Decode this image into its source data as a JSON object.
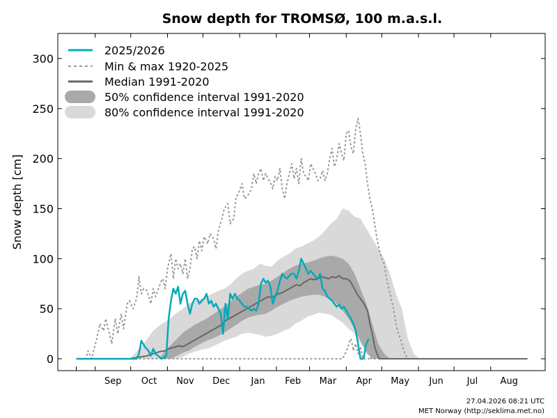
{
  "chart_data": {
    "type": "area",
    "title": "Snow depth for TROMSØ, 100 m.a.s.l.",
    "ylabel": "Snow depth [cm]",
    "xlabel": "",
    "ylim": [
      -15,
      320
    ],
    "yticks": [
      0,
      50,
      100,
      150,
      200,
      250,
      300
    ],
    "grid": false,
    "legend_position": "top-left",
    "x_unit_note": "x values are day-of-season counted from 1 August",
    "months": [
      {
        "label": "Sep",
        "start": 31,
        "mid": 46
      },
      {
        "label": "Oct",
        "start": 61,
        "mid": 76.5
      },
      {
        "label": "Nov",
        "start": 92,
        "mid": 107
      },
      {
        "label": "Dec",
        "start": 122,
        "mid": 137.5
      },
      {
        "label": "Jan",
        "start": 153,
        "mid": 168.5
      },
      {
        "label": "Feb",
        "start": 184,
        "mid": 198
      },
      {
        "label": "Mar",
        "start": 212,
        "mid": 227.5
      },
      {
        "label": "Apr",
        "start": 243,
        "mid": 258
      },
      {
        "label": "May",
        "start": 273,
        "mid": 288.5
      },
      {
        "label": "Jun",
        "start": 304,
        "mid": 319
      },
      {
        "label": "Jul",
        "start": 334,
        "mid": 349.5
      },
      {
        "label": "Aug",
        "start": 365,
        "mid": 380.5
      }
    ],
    "x_range": [
      15,
      396
    ],
    "series": [
      {
        "name": "80% confidence interval 1991-2020",
        "kind": "band",
        "color": "#d9d9d9",
        "x": [
          15,
          50,
          55,
          60,
          65,
          70,
          75,
          80,
          85,
          90,
          95,
          100,
          105,
          110,
          115,
          120,
          125,
          130,
          135,
          140,
          145,
          150,
          155,
          160,
          165,
          170,
          175,
          180,
          185,
          190,
          195,
          200,
          205,
          210,
          215,
          220,
          225,
          230,
          235,
          240,
          245,
          250,
          255,
          260,
          265,
          270,
          275,
          280,
          285,
          290,
          295,
          300,
          305,
          396
        ],
        "upper": [
          0,
          0,
          0,
          0,
          6,
          12,
          20,
          28,
          33,
          37,
          41,
          46,
          50,
          55,
          58,
          60,
          62,
          65,
          68,
          70,
          74,
          80,
          85,
          88,
          90,
          95,
          93,
          92,
          98,
          102,
          105,
          110,
          112,
          115,
          118,
          122,
          128,
          135,
          140,
          150,
          148,
          142,
          140,
          130,
          120,
          110,
          100,
          85,
          65,
          50,
          20,
          5,
          0,
          0
        ],
        "lower": [
          0,
          0,
          0,
          0,
          0,
          0,
          0,
          0,
          0,
          0,
          0,
          0,
          2,
          5,
          7,
          9,
          10,
          12,
          15,
          18,
          20,
          22,
          25,
          26,
          25,
          24,
          22,
          23,
          25,
          28,
          30,
          35,
          38,
          42,
          44,
          46,
          45,
          44,
          40,
          36,
          30,
          25,
          15,
          8,
          3,
          0,
          0,
          0,
          0,
          0,
          0,
          0,
          0,
          0
        ]
      },
      {
        "name": "50% confidence interval 1991-2020",
        "kind": "band",
        "color": "#a9a9a9",
        "x": [
          15,
          85,
          90,
          95,
          100,
          105,
          110,
          115,
          120,
          125,
          130,
          135,
          140,
          145,
          150,
          155,
          160,
          165,
          170,
          175,
          180,
          185,
          190,
          195,
          200,
          205,
          210,
          215,
          220,
          225,
          230,
          235,
          240,
          245,
          250,
          255,
          260,
          265,
          270,
          275,
          280,
          396
        ],
        "upper": [
          0,
          0,
          8,
          14,
          20,
          26,
          30,
          34,
          37,
          40,
          44,
          48,
          52,
          57,
          62,
          66,
          70,
          72,
          74,
          75,
          78,
          82,
          86,
          90,
          93,
          95,
          96,
          98,
          100,
          102,
          103,
          102,
          100,
          95,
          85,
          70,
          55,
          35,
          15,
          5,
          0,
          0
        ],
        "lower": [
          0,
          0,
          0,
          0,
          3,
          6,
          8,
          12,
          15,
          18,
          20,
          23,
          26,
          30,
          34,
          38,
          41,
          43,
          44,
          45,
          48,
          52,
          55,
          58,
          60,
          62,
          63,
          64,
          64,
          62,
          60,
          55,
          48,
          40,
          30,
          18,
          6,
          0,
          0,
          0,
          0,
          0
        ]
      },
      {
        "name": "Min & max 1920-2025",
        "kind": "dashed",
        "color": "#999999",
        "x": [
          15,
          23,
          25,
          28,
          30,
          32,
          35,
          38,
          40,
          42,
          45,
          48,
          50,
          53,
          55,
          58,
          60,
          63,
          66,
          68,
          70,
          72,
          75,
          78,
          80,
          82,
          85,
          87,
          88,
          90,
          92,
          95,
          97,
          99,
          101,
          103,
          105,
          107,
          109,
          111,
          113,
          115,
          117,
          119,
          121,
          123,
          126,
          128,
          131,
          133,
          135,
          138,
          140,
          143,
          145,
          148,
          150,
          152,
          155,
          157,
          159,
          161,
          163,
          165,
          167,
          169,
          171,
          173,
          175,
          177,
          179,
          181,
          183,
          185,
          187,
          189,
          191,
          193,
          195,
          197,
          199,
          201,
          203,
          205,
          207,
          209,
          211,
          213,
          215,
          217,
          219,
          221,
          223,
          225,
          227,
          229,
          231,
          233,
          235,
          237,
          239,
          241,
          243,
          245,
          247,
          249,
          251,
          253,
          255,
          257,
          259,
          261,
          263,
          265,
          267,
          269,
          271,
          273,
          275,
          277,
          279,
          281,
          283,
          285,
          287,
          289,
          291,
          293,
          295,
          297,
          299,
          301,
          303,
          305,
          307,
          309,
          311,
          396
        ],
        "values": [
          0,
          0,
          8,
          0,
          10,
          18,
          35,
          28,
          40,
          30,
          15,
          40,
          25,
          45,
          30,
          55,
          58,
          50,
          60,
          82,
          65,
          70,
          68,
          55,
          70,
          62,
          72,
          78,
          80,
          70,
          90,
          105,
          80,
          100,
          90,
          95,
          85,
          100,
          80,
          90,
          110,
          112,
          100,
          118,
          108,
          122,
          115,
          125,
          120,
          110,
          128,
          140,
          150,
          155,
          135,
          140,
          162,
          165,
          175,
          160,
          162,
          165,
          170,
          185,
          175,
          185,
          190,
          178,
          185,
          180,
          176,
          170,
          182,
          178,
          190,
          170,
          160,
          175,
          185,
          195,
          180,
          190,
          175,
          200,
          185,
          182,
          178,
          195,
          190,
          185,
          178,
          180,
          188,
          178,
          185,
          200,
          210,
          192,
          200,
          215,
          205,
          198,
          225,
          228,
          212,
          205,
          230,
          240,
          225,
          205,
          195,
          175,
          160,
          150,
          135,
          120,
          108,
          100,
          95,
          80,
          70,
          60,
          50,
          35,
          25,
          20,
          10,
          4,
          0,
          0,
          0,
          0,
          0,
          0,
          0,
          0,
          0,
          0
        ]
      },
      {
        "name": "Min & max 1920-2025 (minimum)",
        "kind": "dashed",
        "color": "#999999",
        "x": [
          15,
          240,
          242,
          244,
          246,
          247,
          248,
          249,
          250,
          251,
          252,
          253,
          254,
          255,
          256,
          257,
          258,
          259,
          260,
          261,
          262,
          263,
          264,
          266,
          270,
          396
        ],
        "values": [
          0,
          0,
          5,
          10,
          18,
          20,
          15,
          8,
          12,
          15,
          10,
          5,
          8,
          12,
          6,
          0,
          0,
          0,
          0,
          0,
          0,
          2,
          0,
          0,
          0,
          0
        ]
      },
      {
        "name": "Median 1991-2020",
        "kind": "line",
        "color": "#666666",
        "x": [
          15,
          60,
          65,
          70,
          75,
          80,
          85,
          90,
          93,
          96,
          99,
          102,
          105,
          108,
          111,
          114,
          117,
          120,
          123,
          126,
          129,
          132,
          135,
          138,
          141,
          144,
          147,
          150,
          153,
          156,
          159,
          162,
          165,
          168,
          171,
          174,
          177,
          180,
          183,
          186,
          189,
          192,
          195,
          198,
          201,
          204,
          207,
          210,
          213,
          216,
          219,
          222,
          225,
          228,
          231,
          234,
          237,
          240,
          243,
          246,
          249,
          252,
          255,
          258,
          261,
          263,
          265,
          267,
          269,
          271,
          273,
          275,
          278,
          396
        ],
        "values": [
          0,
          0,
          1,
          2,
          3,
          5,
          7,
          8,
          10,
          11,
          12,
          13,
          12,
          14,
          16,
          18,
          20,
          22,
          24,
          26,
          28,
          30,
          32,
          34,
          38,
          40,
          42,
          44,
          46,
          48,
          50,
          52,
          54,
          56,
          58,
          60,
          62,
          61,
          63,
          65,
          66,
          68,
          70,
          72,
          74,
          73,
          76,
          78,
          80,
          79,
          80,
          82,
          81,
          80,
          82,
          81,
          83,
          80,
          80,
          78,
          72,
          65,
          60,
          55,
          48,
          35,
          25,
          12,
          5,
          0,
          0,
          0,
          0,
          0
        ]
      },
      {
        "name": "2025/2026",
        "kind": "line",
        "color": "#04A9BA",
        "x": [
          15,
          60,
          63,
          66,
          68,
          70,
          73,
          76,
          78,
          80,
          82,
          85,
          87,
          89,
          91,
          93,
          95,
          97,
          99,
          101,
          103,
          105,
          107,
          109,
          111,
          113,
          115,
          117,
          119,
          121,
          123,
          125,
          127,
          129,
          131,
          133,
          135,
          137,
          139,
          141,
          143,
          145,
          147,
          149,
          151,
          153,
          155,
          157,
          159,
          161,
          163,
          165,
          167,
          169,
          171,
          173,
          175,
          177,
          179,
          181,
          183,
          185,
          187,
          189,
          191,
          193,
          195,
          197,
          199,
          201,
          203,
          205,
          207,
          209,
          211,
          213,
          215,
          217,
          219,
          221,
          223,
          225,
          227,
          229,
          231,
          233,
          235,
          237,
          239,
          241,
          243,
          245,
          247,
          249,
          251,
          253,
          255,
          256,
          257,
          258,
          259,
          260,
          262
        ],
        "values": [
          0,
          0,
          0,
          0,
          5,
          18,
          12,
          8,
          3,
          10,
          5,
          2,
          0,
          1,
          3,
          40,
          58,
          70,
          65,
          72,
          55,
          65,
          68,
          55,
          45,
          55,
          60,
          60,
          55,
          58,
          60,
          65,
          55,
          58,
          52,
          55,
          50,
          45,
          25,
          55,
          40,
          65,
          60,
          65,
          60,
          58,
          55,
          52,
          52,
          50,
          48,
          50,
          48,
          55,
          75,
          80,
          76,
          78,
          72,
          55,
          62,
          68,
          78,
          85,
          82,
          80,
          83,
          85,
          85,
          80,
          88,
          100,
          95,
          90,
          85,
          88,
          85,
          82,
          80,
          85,
          70,
          68,
          62,
          60,
          58,
          55,
          52,
          54,
          50,
          52,
          48,
          44,
          40,
          35,
          28,
          15,
          0,
          0,
          0,
          2,
          10,
          15,
          20
        ]
      }
    ]
  },
  "legend": {
    "items": [
      {
        "label": "2025/2026",
        "kind": "line",
        "color": "#04A9BA"
      },
      {
        "label": "Min & max 1920-2025",
        "kind": "dashed",
        "color": "#999999"
      },
      {
        "label": "Median 1991-2020",
        "kind": "line",
        "color": "#666666"
      },
      {
        "label": "50% confidence interval 1991-2020",
        "kind": "band",
        "color": "#a9a9a9"
      },
      {
        "label": "80% confidence interval 1991-2020",
        "kind": "band",
        "color": "#d9d9d9"
      }
    ]
  },
  "footer": {
    "timestamp": "27.04.2026 08:21 UTC",
    "credit": "MET Norway (http://seklima.met.no)"
  }
}
